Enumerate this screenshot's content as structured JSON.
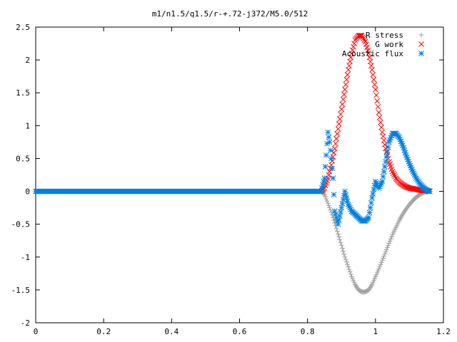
{
  "chart_data": {
    "type": "scatter",
    "title": "m1/n1.5/q1.5/r-+.72-j372/M5.0/512",
    "xlabel": "",
    "ylabel": "",
    "xlim": [
      0,
      1.2
    ],
    "ylim": [
      -2,
      2.5
    ],
    "xticks": [
      0,
      0.2,
      0.4,
      0.6,
      0.8,
      1,
      1.2
    ],
    "xtick_labels": [
      "0",
      "0.2",
      "0.4",
      "0.6",
      "0.8",
      "1",
      "1.2"
    ],
    "yticks": [
      -2,
      -1.5,
      -1,
      -0.5,
      0,
      0.5,
      1,
      1.5,
      2,
      2.5
    ],
    "ytick_labels": [
      "-2",
      "-1.5",
      "-1",
      "-0.5",
      "0",
      "0.5",
      "1",
      "1.5",
      "2",
      "2.5"
    ],
    "grid": false,
    "legend_position": "top-right",
    "series": [
      {
        "name": "R stress",
        "marker": "plus",
        "color": "#a0a0a0",
        "x": [
          0,
          0.05,
          0.1,
          0.15,
          0.2,
          0.25,
          0.3,
          0.35,
          0.4,
          0.45,
          0.5,
          0.55,
          0.6,
          0.65,
          0.7,
          0.75,
          0.8,
          0.84,
          0.85,
          0.86,
          0.87,
          0.88,
          0.89,
          0.9,
          0.91,
          0.92,
          0.93,
          0.94,
          0.95,
          0.96,
          0.97,
          0.98,
          0.99,
          1.0,
          1.01,
          1.02,
          1.03,
          1.04,
          1.05,
          1.06,
          1.07,
          1.08,
          1.09,
          1.1,
          1.11,
          1.12,
          1.13,
          1.14,
          1.15,
          1.16
        ],
        "y": [
          0,
          0,
          0,
          0,
          0,
          0,
          0,
          0,
          0,
          0,
          0,
          0,
          0,
          0,
          0,
          0,
          0,
          0,
          -0.05,
          -0.18,
          -0.32,
          -0.48,
          -0.65,
          -0.82,
          -1.0,
          -1.15,
          -1.3,
          -1.42,
          -1.5,
          -1.53,
          -1.53,
          -1.5,
          -1.42,
          -1.3,
          -1.18,
          -1.05,
          -0.92,
          -0.79,
          -0.66,
          -0.55,
          -0.44,
          -0.35,
          -0.27,
          -0.2,
          -0.14,
          -0.09,
          -0.05,
          -0.02,
          -0.01,
          0
        ]
      },
      {
        "name": "G work",
        "marker": "cross",
        "color": "#ff0000",
        "x": [
          0.84,
          0.85,
          0.86,
          0.87,
          0.88,
          0.89,
          0.9,
          0.91,
          0.92,
          0.93,
          0.94,
          0.95,
          0.96,
          0.97,
          0.98,
          0.99,
          1.0,
          1.01,
          1.02,
          1.03,
          1.04,
          1.05,
          1.06,
          1.07,
          1.08,
          1.09,
          1.1,
          1.11,
          1.12,
          1.13,
          1.14,
          1.15,
          1.16
        ],
        "y": [
          0,
          0.05,
          0.2,
          0.4,
          0.65,
          0.95,
          1.25,
          1.55,
          1.85,
          2.1,
          2.3,
          2.37,
          2.37,
          2.28,
          2.1,
          1.85,
          1.55,
          1.2,
          0.9,
          0.65,
          0.45,
          0.3,
          0.2,
          0.14,
          0.1,
          0.07,
          0.05,
          0.04,
          0.03,
          0.02,
          0.01,
          0.01,
          0
        ]
      },
      {
        "name": "Acoustic flux",
        "marker": "star",
        "color": "#0080e0",
        "x": [
          0,
          0.05,
          0.1,
          0.15,
          0.2,
          0.25,
          0.3,
          0.35,
          0.4,
          0.45,
          0.5,
          0.55,
          0.6,
          0.65,
          0.7,
          0.75,
          0.8,
          0.84,
          0.85,
          0.855,
          0.86,
          0.865,
          0.87,
          0.875,
          0.88,
          0.89,
          0.9,
          0.91,
          0.92,
          0.93,
          0.94,
          0.95,
          0.96,
          0.97,
          0.98,
          0.99,
          1.0,
          1.01,
          1.02,
          1.03,
          1.04,
          1.05,
          1.06,
          1.07,
          1.08,
          1.09,
          1.1,
          1.11,
          1.12,
          1.13,
          1.14,
          1.15,
          1.16
        ],
        "y": [
          0,
          0,
          0,
          0,
          0,
          0,
          0,
          0,
          0,
          0,
          0,
          0,
          0,
          0,
          0,
          0,
          0,
          0,
          0.2,
          0.55,
          0.9,
          0.75,
          0.5,
          0.2,
          -0.3,
          -0.5,
          -0.25,
          0.0,
          -0.2,
          -0.3,
          -0.35,
          -0.4,
          -0.45,
          -0.45,
          -0.4,
          -0.1,
          0.15,
          0.05,
          0.15,
          0.45,
          0.75,
          0.88,
          0.88,
          0.82,
          0.7,
          0.55,
          0.42,
          0.3,
          0.2,
          0.12,
          0.06,
          0.02,
          0
        ]
      }
    ]
  }
}
